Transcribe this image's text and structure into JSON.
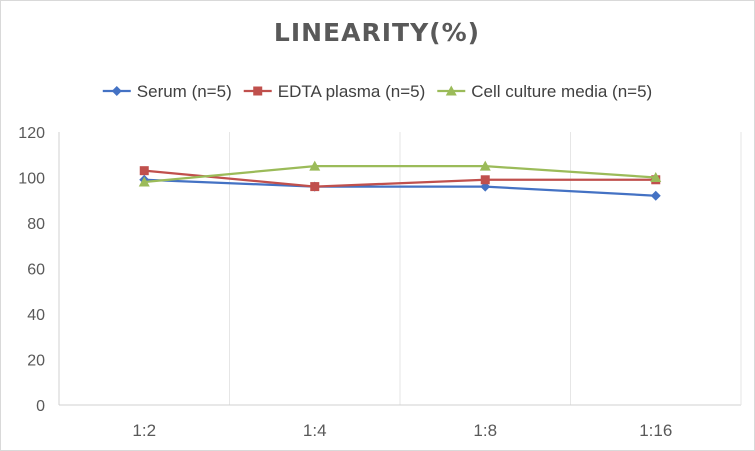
{
  "chart_data": {
    "type": "line",
    "title": "LINEARITY(%)",
    "categories": [
      "1:2",
      "1:4",
      "1:8",
      "1:16"
    ],
    "series": [
      {
        "name": "Serum (n=5)",
        "values": [
          99,
          96,
          96,
          92
        ],
        "color": "#4472c4",
        "marker": "diamond"
      },
      {
        "name": "EDTA plasma (n=5)",
        "values": [
          103,
          96,
          99,
          99
        ],
        "color": "#c0504d",
        "marker": "square"
      },
      {
        "name": "Cell culture media (n=5)",
        "values": [
          98,
          105,
          105,
          100
        ],
        "color": "#9bbb59",
        "marker": "triangle"
      }
    ],
    "ylim": [
      0,
      120
    ],
    "yticks": [
      0,
      20,
      40,
      60,
      80,
      100,
      120
    ],
    "grid": "vertical",
    "legend_position": "top"
  }
}
